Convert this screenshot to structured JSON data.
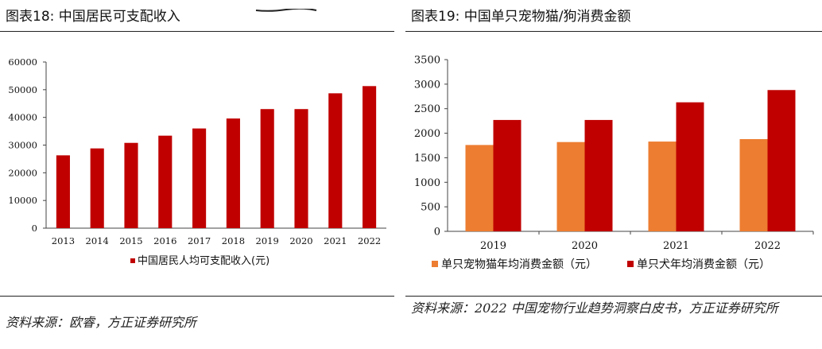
{
  "left": {
    "title": "图表18: 中国居民可支配收入",
    "source": "资料来源：欧睿，方正证券研究所"
  },
  "right": {
    "title": "图表19: 中国单只宠物猫/狗消费金额",
    "source": "资料来源：2022 中国宠物行业趋势洞察白皮书，方正证券研究所"
  },
  "chart_data": [
    {
      "type": "bar",
      "title": "",
      "categories": [
        "2013",
        "2014",
        "2015",
        "2016",
        "2017",
        "2018",
        "2019",
        "2020",
        "2021",
        "2022"
      ],
      "series": [
        {
          "name": "中国居民人均可支配收入(元)",
          "values": [
            26300,
            28800,
            30800,
            33400,
            36000,
            39600,
            43000,
            43000,
            48700,
            51300
          ]
        }
      ],
      "ylim": [
        0,
        60000
      ],
      "yticks": [
        0,
        10000,
        20000,
        30000,
        40000,
        50000,
        60000
      ],
      "grid": false,
      "legend": "bottom",
      "colors": {
        "bar": "#c00000"
      }
    },
    {
      "type": "bar",
      "title": "",
      "categories": [
        "2019",
        "2020",
        "2021",
        "2022"
      ],
      "series": [
        {
          "name": "单只宠物猫年均消费金额（元）",
          "values": [
            1760,
            1820,
            1830,
            1880
          ]
        },
        {
          "name": "单只犬年均消费金额（元）",
          "values": [
            2270,
            2270,
            2630,
            2880
          ]
        }
      ],
      "ylim": [
        0,
        3500
      ],
      "yticks": [
        0,
        500,
        1000,
        1500,
        2000,
        2500,
        3000,
        3500
      ],
      "grid": false,
      "legend": "bottom",
      "colors": {
        "cat": "#ed7d31",
        "dog": "#c00000"
      }
    }
  ]
}
